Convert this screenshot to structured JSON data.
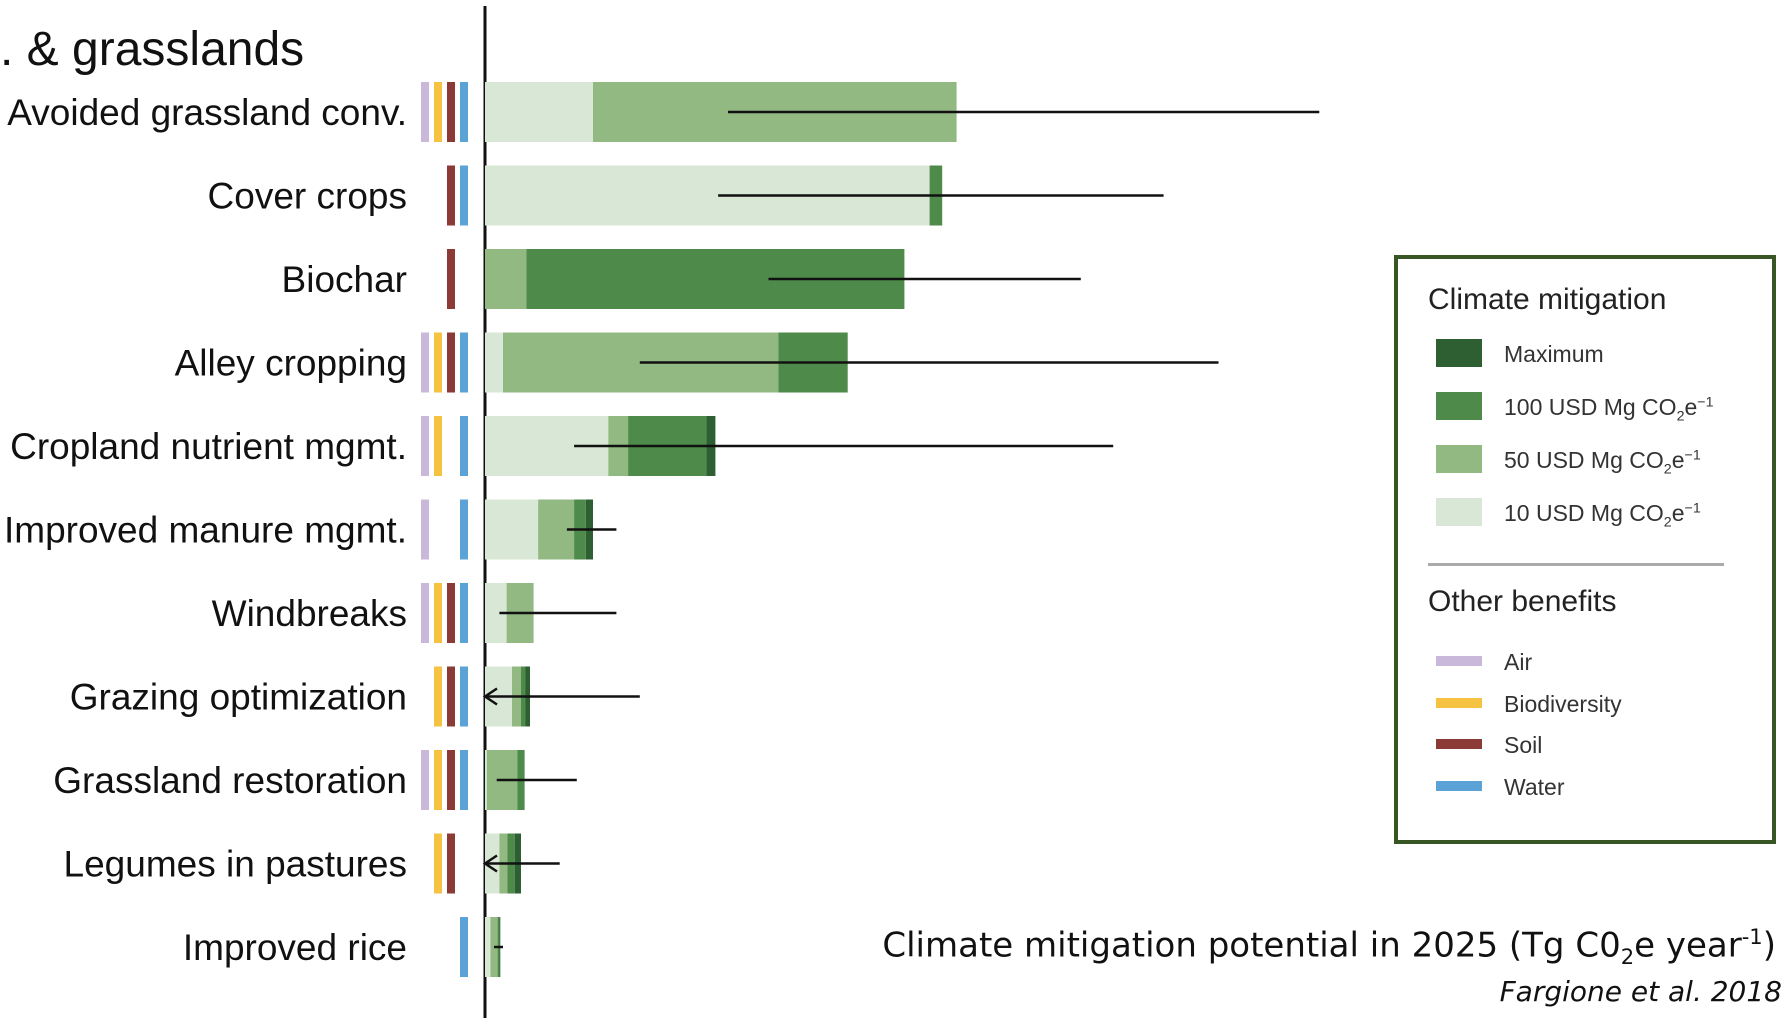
{
  "section_title": ". & grasslands",
  "chart_data": {
    "type": "bar",
    "orientation": "horizontal",
    "stacked": true,
    "categories": [
      "Avoided grassland conv.",
      "Cover crops",
      "Biochar",
      "Alley cropping",
      "Cropland nutrient mgmt.",
      "Improved manure mgmt.",
      "Windbreaks",
      "Grazing optimization",
      "Grassland restoration",
      "Legumes in pastures",
      "Improved rice"
    ],
    "series": [
      {
        "name": "10 USD Mg CO2e-1",
        "color": "#d9e8d6",
        "values": [
          120,
          494,
          0,
          20,
          137,
          59,
          24,
          30,
          2,
          16,
          6
        ]
      },
      {
        "name": "50 USD Mg CO2e-1",
        "color": "#93b983",
        "values": [
          404,
          0,
          46,
          306,
          22,
          40,
          30,
          10,
          34,
          9,
          8
        ]
      },
      {
        "name": "100 USD Mg CO2e-1",
        "color": "#4e8a49",
        "values": [
          0,
          14,
          420,
          77,
          87,
          13,
          0,
          5,
          8,
          8,
          2
        ]
      },
      {
        "name": "Maximum",
        "color": "#2e5f32",
        "values": [
          0,
          0,
          0,
          0,
          10,
          8,
          0,
          5,
          0,
          7,
          1
        ]
      }
    ],
    "error_bars": [
      {
        "low": 270,
        "high": 927,
        "arrow_low": false
      },
      {
        "low": 259,
        "high": 754,
        "arrow_low": false
      },
      {
        "low": 315,
        "high": 662,
        "arrow_low": false
      },
      {
        "low": 172,
        "high": 815,
        "arrow_low": false
      },
      {
        "low": 99,
        "high": 698,
        "arrow_low": false
      },
      {
        "low": 91,
        "high": 146,
        "arrow_low": false
      },
      {
        "low": 16,
        "high": 146,
        "arrow_low": false
      },
      {
        "low": 0,
        "high": 172,
        "arrow_low": true
      },
      {
        "low": 13,
        "high": 102,
        "arrow_low": false
      },
      {
        "low": 0,
        "high": 83,
        "arrow_low": true
      },
      {
        "low": 10,
        "high": 20,
        "arrow_low": false
      }
    ],
    "benefits": [
      [
        "Air",
        "Biodiversity",
        "Soil",
        "Water"
      ],
      [
        "Soil",
        "Water"
      ],
      [
        "Soil"
      ],
      [
        "Air",
        "Biodiversity",
        "Soil",
        "Water"
      ],
      [
        "Air",
        "Biodiversity",
        "Water"
      ],
      [
        "Air",
        "Water"
      ],
      [
        "Air",
        "Biodiversity",
        "Soil",
        "Water"
      ],
      [
        "Biodiversity",
        "Soil",
        "Water"
      ],
      [
        "Air",
        "Biodiversity",
        "Soil",
        "Water"
      ],
      [
        "Biodiversity",
        "Soil"
      ],
      [
        "Water"
      ]
    ],
    "benefit_colors": {
      "Air": "#c9b8da",
      "Biodiversity": "#f5c242",
      "Soil": "#8b3a36",
      "Water": "#5ba3d6"
    },
    "xlim": [
      0,
      1200
    ],
    "xlabel": "Climate mitigation potential in 2025 (Tg C0₂e year⁻¹)",
    "grid": false,
    "legend_position": "right"
  },
  "legend": {
    "mitigation_title": "Climate mitigation",
    "mitigation_items": [
      {
        "label": "Maximum",
        "color": "#2e5f32"
      },
      {
        "label": "100 USD Mg CO",
        "sub": "2",
        "tail": "e",
        "sup": "−1",
        "color": "#4e8a49"
      },
      {
        "label": "50 USD Mg CO",
        "sub": "2",
        "tail": "e",
        "sup": "−1",
        "color": "#93b983"
      },
      {
        "label": "10 USD Mg CO",
        "sub": "2",
        "tail": "e",
        "sup": "−1",
        "color": "#d9e8d6"
      }
    ],
    "benefits_title": "Other benefits",
    "benefit_items": [
      {
        "label": "Air",
        "color": "#c9b8da"
      },
      {
        "label": "Biodiversity",
        "color": "#f5c242"
      },
      {
        "label": "Soil",
        "color": "#8b3a36"
      },
      {
        "label": "Water",
        "color": "#5ba3d6"
      }
    ]
  },
  "xlabel_parts": {
    "pre": "Climate mitigation potential in 2025 (Tg C0",
    "sub": "2",
    "mid": "e year",
    "sup": "-1",
    "post": ")"
  },
  "source": "Fargione et al. 2018"
}
